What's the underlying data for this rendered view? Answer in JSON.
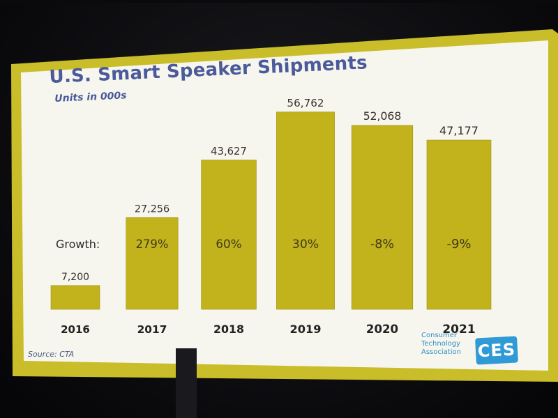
{
  "slide": {
    "source": "Source: CTA",
    "logo": {
      "lines": [
        "Consumer",
        "Technology",
        "Association"
      ],
      "badge": "CES"
    }
  },
  "colors": {
    "bar": "#c2b21c",
    "bar_edge": "#9e8f10",
    "frame": "#c9bd2a",
    "slide_bg": "#f6f6ee",
    "value_text": "#3a2f2f",
    "growth_text": "#3f3a1a",
    "title": "#4a5a9a"
  },
  "chart_data": {
    "type": "bar",
    "title": "U.S. Smart Speaker Shipments",
    "subtitle": "Units in 000s",
    "categories": [
      "2016",
      "2017",
      "2018",
      "2019",
      "2020",
      "2021"
    ],
    "values": [
      7200,
      27256,
      43627,
      56762,
      52068,
      47177
    ],
    "value_labels": [
      "7,200",
      "27,256",
      "43,627",
      "56,762",
      "52,068",
      "47,177"
    ],
    "growth_label": "Growth:",
    "growth": [
      "",
      "279%",
      "60%",
      "30%",
      "-8%",
      "-9%"
    ],
    "xlabel": "",
    "ylabel": "",
    "ylim": [
      0,
      60000
    ],
    "grid": false,
    "legend": "none"
  }
}
